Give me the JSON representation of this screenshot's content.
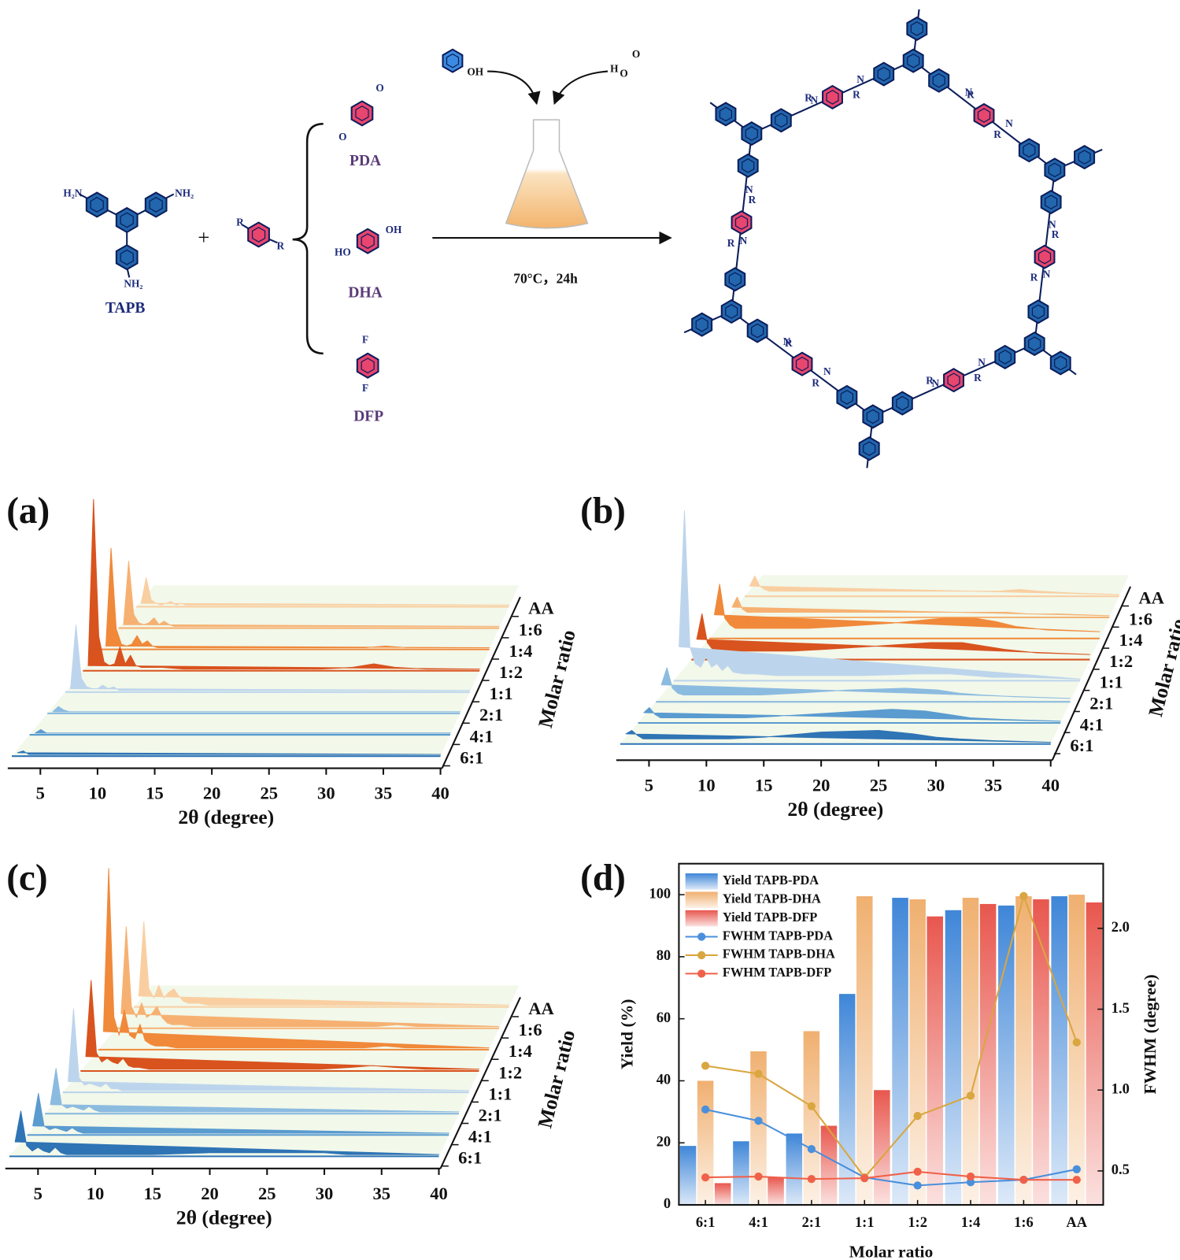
{
  "scheme": {
    "tapb": {
      "label": "TAPB",
      "atoms": [
        "H₂N",
        "NH₂",
        "NH₂"
      ]
    },
    "plus": "+",
    "linker_atoms": [
      "R",
      "R"
    ],
    "aldehydes": [
      {
        "label": "PDA",
        "atoms": [
          "O",
          "O"
        ]
      },
      {
        "label": "DHA",
        "atoms": [
          "OH",
          "HO"
        ]
      },
      {
        "label": "DFP",
        "atoms": [
          "F",
          "F"
        ]
      }
    ],
    "catalyst_atoms": [
      "OH",
      "H",
      "O",
      "O"
    ],
    "conditions": "70°C，24h",
    "cof_atoms": [
      "N",
      "R"
    ]
  },
  "chart_data": [
    {
      "type": "waterfall",
      "panel_label": "(a)",
      "x_label": "2θ (degree)",
      "z_label": "Molar ratio",
      "x": [
        3,
        3.5,
        4,
        4.5,
        5,
        5.5,
        6,
        6.5,
        7,
        7.5,
        8,
        9,
        10,
        12,
        15,
        20,
        25,
        28,
        30,
        32,
        35,
        40
      ],
      "xlim": [
        2.5,
        40
      ],
      "xticks": [
        5,
        10,
        15,
        20,
        25,
        30,
        35,
        40
      ],
      "series": [
        {
          "name": "6:1",
          "color": "#2f74b5",
          "values": [
            2,
            3,
            1,
            1,
            1,
            1,
            1,
            1,
            1,
            1,
            1,
            1,
            1,
            1,
            1,
            1,
            1,
            1,
            1,
            1,
            1,
            1
          ]
        },
        {
          "name": "4:1",
          "color": "#5a9bd0",
          "values": [
            1,
            3,
            1,
            1,
            1,
            1,
            1,
            1,
            1,
            1,
            1,
            1,
            1,
            1,
            1,
            1,
            1,
            1,
            1,
            1,
            1,
            1
          ]
        },
        {
          "name": "2:1",
          "color": "#8cbbe0",
          "values": [
            1,
            4,
            2,
            1,
            1,
            1,
            1,
            1,
            1,
            1,
            1,
            1,
            1,
            1,
            1,
            1,
            1,
            1,
            1,
            1,
            1,
            1
          ]
        },
        {
          "name": "1:1",
          "color": "#bdd5ec",
          "values": [
            2,
            39,
            8,
            3,
            2,
            2,
            4,
            2,
            3,
            1,
            1,
            1,
            1,
            1,
            1,
            1,
            1,
            1,
            1,
            1,
            1,
            1
          ]
        },
        {
          "name": "1:2",
          "color": "#d9531e",
          "values": [
            3,
            100,
            20,
            5,
            3,
            4,
            14,
            4,
            9,
            3,
            2,
            2,
            2,
            1,
            1,
            1,
            1,
            2,
            4,
            2,
            1,
            1
          ]
        },
        {
          "name": "1:4",
          "color": "#f0893a",
          "values": [
            2,
            59,
            12,
            3,
            2,
            3,
            8,
            3,
            5,
            2,
            1,
            1,
            1,
            1,
            1,
            1,
            1,
            1,
            2,
            1,
            1,
            1
          ]
        },
        {
          "name": "1:6",
          "color": "#f6b172",
          "values": [
            2,
            39,
            8,
            3,
            2,
            3,
            6,
            2,
            4,
            2,
            1,
            1,
            1,
            1,
            1,
            1,
            1,
            1,
            1,
            1,
            1,
            1
          ]
        },
        {
          "name": "AA",
          "color": "#f9cfa2",
          "values": [
            2,
            17,
            4,
            2,
            1,
            2,
            3,
            1,
            2,
            1,
            1,
            1,
            1,
            1,
            1,
            1,
            1,
            1,
            1,
            1,
            1,
            1
          ]
        }
      ]
    },
    {
      "type": "waterfall",
      "panel_label": "(b)",
      "x_label": "2θ (degree)",
      "z_label": "Molar ratio",
      "x": [
        3,
        3.5,
        4,
        4.5,
        5,
        5.5,
        6,
        6.5,
        7,
        7.5,
        8,
        9,
        10,
        12,
        15,
        20,
        25,
        28,
        30,
        32,
        35,
        40
      ],
      "xlim": [
        2.5,
        40
      ],
      "xticks": [
        5,
        10,
        15,
        20,
        25,
        30,
        35,
        40
      ],
      "series": [
        {
          "name": "6:1",
          "color": "#2f74b5",
          "values": [
            6,
            8,
            5,
            3,
            3,
            3,
            3,
            3,
            3,
            3,
            3,
            3,
            3,
            3,
            4,
            7,
            8,
            6,
            4,
            3,
            2,
            1
          ]
        },
        {
          "name": "4:1",
          "color": "#5a9bd0",
          "values": [
            6,
            9,
            5,
            3,
            3,
            3,
            3,
            3,
            3,
            3,
            3,
            3,
            3,
            3,
            4,
            6,
            8,
            7,
            5,
            3,
            2,
            1
          ]
        },
        {
          "name": "2:1",
          "color": "#8cbbe0",
          "values": [
            10,
            20,
            8,
            5,
            4,
            4,
            4,
            4,
            4,
            4,
            4,
            4,
            4,
            4,
            5,
            7,
            8,
            7,
            5,
            4,
            3,
            2
          ]
        },
        {
          "name": "1:1",
          "color": "#bdd5ec",
          "values": [
            20,
            100,
            20,
            10,
            8,
            14,
            8,
            10,
            6,
            9,
            5,
            4,
            4,
            3,
            3,
            3,
            4,
            4,
            3,
            2,
            2,
            1
          ]
        },
        {
          "name": "1:2",
          "color": "#d9531e",
          "values": [
            12,
            27,
            10,
            6,
            5,
            5,
            5,
            5,
            5,
            5,
            5,
            5,
            5,
            5,
            6,
            8,
            10,
            10,
            8,
            6,
            4,
            3
          ]
        },
        {
          "name": "1:4",
          "color": "#f0893a",
          "values": [
            14,
            32,
            12,
            8,
            6,
            6,
            6,
            6,
            6,
            6,
            6,
            6,
            6,
            6,
            7,
            9,
            12,
            12,
            10,
            7,
            5,
            4
          ]
        },
        {
          "name": "1:6",
          "color": "#f6b172",
          "values": [
            6,
            12,
            5,
            3,
            3,
            3,
            3,
            3,
            3,
            3,
            3,
            3,
            3,
            3,
            3,
            3,
            3,
            3,
            3,
            2,
            2,
            1
          ]
        },
        {
          "name": "AA",
          "color": "#f9cfa2",
          "values": [
            6,
            12,
            6,
            4,
            3,
            3,
            3,
            3,
            3,
            3,
            3,
            3,
            3,
            3,
            3,
            3,
            3,
            3,
            4,
            3,
            2,
            1
          ]
        }
      ]
    },
    {
      "type": "waterfall",
      "panel_label": "(c)",
      "x_label": "2θ (degree)",
      "z_label": "Molar ratio",
      "x": [
        3,
        3.5,
        4,
        4.5,
        5,
        5.5,
        6,
        6.5,
        7,
        7.5,
        8,
        9,
        10,
        12,
        15,
        20,
        25,
        28,
        30,
        32,
        35,
        40
      ],
      "xlim": [
        2.5,
        40
      ],
      "xticks": [
        5,
        10,
        15,
        20,
        25,
        30,
        35,
        40
      ],
      "series": [
        {
          "name": "6:1",
          "color": "#2f74b5",
          "values": [
            8,
            25,
            6,
            3,
            5,
            3,
            2,
            5,
            2,
            1,
            1,
            1,
            1,
            1,
            1,
            2,
            2,
            2,
            2,
            1,
            1,
            1
          ]
        },
        {
          "name": "4:1",
          "color": "#5a9bd0",
          "values": [
            5,
            23,
            5,
            3,
            4,
            3,
            2,
            4,
            2,
            1,
            1,
            1,
            1,
            1,
            1,
            1,
            1,
            1,
            1,
            1,
            1,
            1
          ]
        },
        {
          "name": "2:1",
          "color": "#8cbbe0",
          "values": [
            5,
            25,
            5,
            3,
            4,
            3,
            2,
            4,
            2,
            1,
            1,
            1,
            1,
            1,
            1,
            1,
            1,
            1,
            1,
            1,
            1,
            1
          ]
        },
        {
          "name": "1:1",
          "color": "#bdd5ec",
          "values": [
            6,
            46,
            8,
            4,
            5,
            4,
            3,
            5,
            2,
            2,
            1,
            1,
            1,
            1,
            1,
            1,
            1,
            1,
            1,
            1,
            1,
            1
          ]
        },
        {
          "name": "1:2",
          "color": "#d9531e",
          "values": [
            8,
            50,
            10,
            5,
            7,
            5,
            4,
            7,
            3,
            2,
            2,
            1,
            1,
            1,
            1,
            1,
            1,
            2,
            3,
            2,
            1,
            1
          ]
        },
        {
          "name": "1:4",
          "color": "#f0893a",
          "values": [
            10,
            100,
            18,
            8,
            22,
            8,
            6,
            14,
            5,
            3,
            2,
            2,
            1,
            1,
            1,
            1,
            1,
            1,
            2,
            1,
            1,
            1
          ]
        },
        {
          "name": "1:6",
          "color": "#f6b172",
          "values": [
            8,
            56,
            12,
            6,
            14,
            6,
            8,
            12,
            6,
            3,
            2,
            2,
            1,
            1,
            1,
            1,
            1,
            1,
            2,
            1,
            1,
            1
          ]
        },
        {
          "name": "AA",
          "color": "#f9cfa2",
          "values": [
            6,
            47,
            10,
            5,
            12,
            5,
            8,
            10,
            6,
            3,
            2,
            2,
            1,
            1,
            1,
            1,
            1,
            1,
            1,
            1,
            1,
            1
          ]
        }
      ]
    },
    {
      "type": "bar-line",
      "panel_label": "(d)",
      "x_label": "Molar ratio",
      "y_label": "Yield (%)",
      "y2_label": "FWHM (degree)",
      "categories": [
        "6:1",
        "4:1",
        "2:1",
        "1:1",
        "1:2",
        "1:4",
        "1:6",
        "AA"
      ],
      "ylim": [
        0,
        110
      ],
      "yticks": [
        0,
        20,
        40,
        60,
        80,
        100
      ],
      "y2lim": [
        0.29,
        2.4
      ],
      "y2ticks": [
        0.5,
        {
          "value": 1,
          "label": "1.0"
        },
        1.5,
        {
          "value": 2,
          "label": "2.0"
        }
      ],
      "legend": "upper left",
      "series": [
        {
          "name": "Yield TAPB-PDA",
          "type": "bar",
          "color": "#3f86d8",
          "values": [
            19,
            20.5,
            23,
            68,
            99,
            95,
            96.5,
            99.5
          ]
        },
        {
          "name": "Yield TAPB-DHA",
          "type": "bar",
          "color": "#f0b070",
          "values": [
            40,
            49.5,
            56,
            99.5,
            98.5,
            99,
            99.5,
            100
          ]
        },
        {
          "name": "Yield TAPB-DFP",
          "type": "bar",
          "color": "#e8574e",
          "values": [
            7,
            9,
            25.5,
            37,
            93,
            97,
            98.5,
            97.5
          ]
        },
        {
          "name": "FWHM TAPB-PDA",
          "type": "line",
          "axis": "y2",
          "color": "#4a8fdc",
          "values": [
            0.88,
            0.81,
            0.635,
            0.46,
            0.41,
            0.43,
            0.445,
            0.51
          ]
        },
        {
          "name": "FWHM TAPB-DHA",
          "type": "line",
          "axis": "y2",
          "color": "#d9a640",
          "values": [
            1.15,
            1.1,
            0.9,
            0.46,
            0.84,
            0.965,
            2.2,
            1.295
          ]
        },
        {
          "name": "FWHM TAPB-DFP",
          "type": "line",
          "axis": "y2",
          "color": "#f0614a",
          "values": [
            0.46,
            0.465,
            0.45,
            0.455,
            0.495,
            0.465,
            0.445,
            0.445
          ]
        }
      ]
    }
  ]
}
